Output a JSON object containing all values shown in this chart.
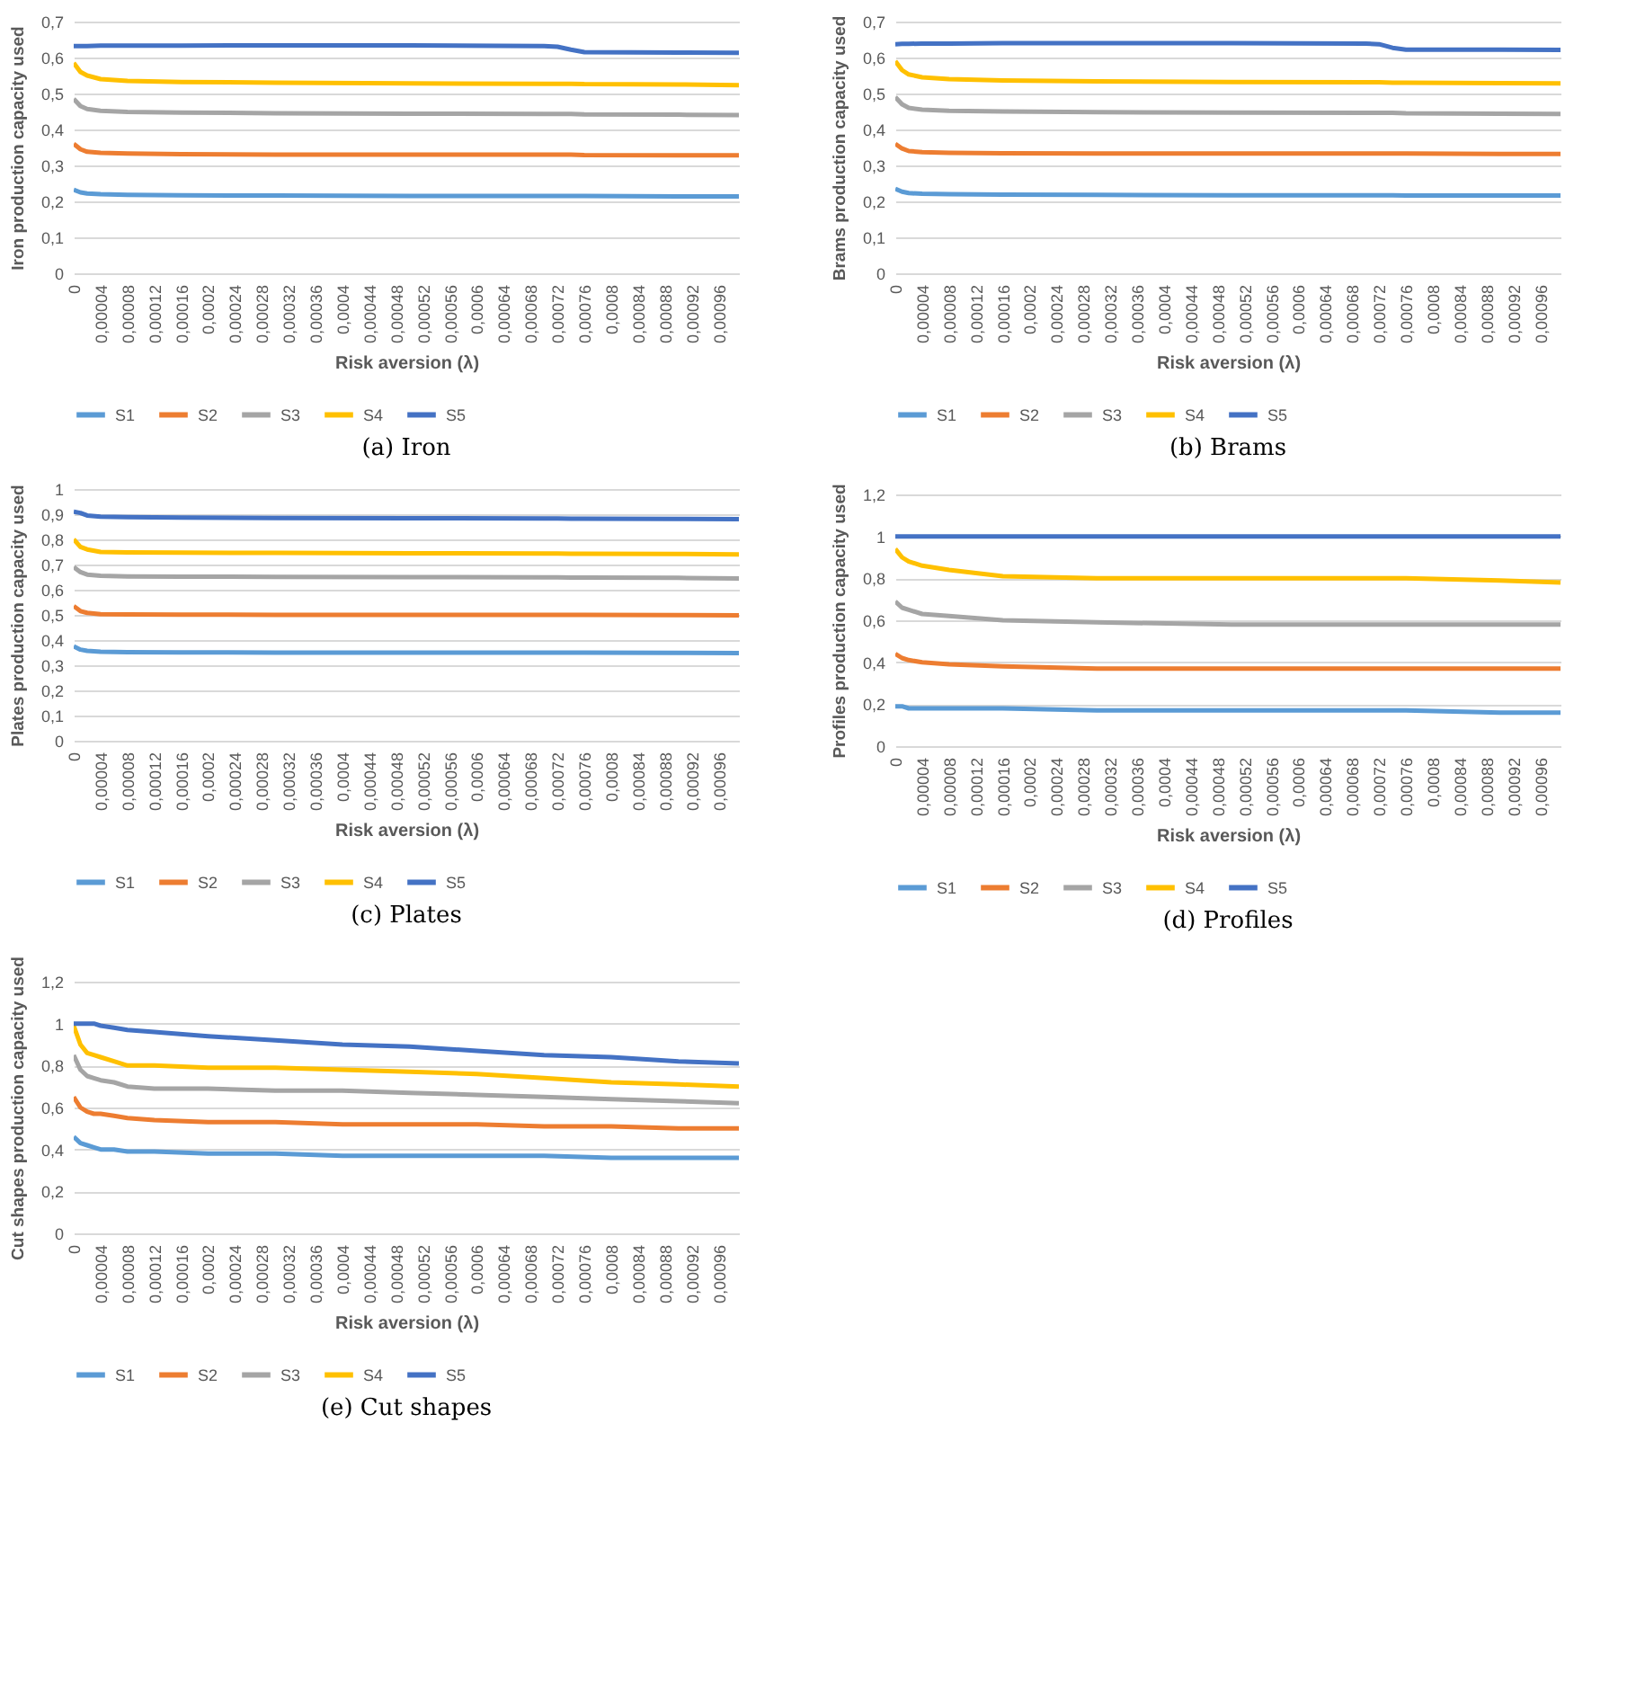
{
  "chart_data": [
    {
      "type": "line",
      "title": "(a) Iron",
      "xlabel": "Risk aversion (λ)",
      "ylabel": "Iron production capacity used",
      "legend": "bottom",
      "grid": "y",
      "xlim": [
        0,
        0.00099
      ],
      "ylim": [
        0,
        0.7
      ],
      "xticks": [
        {
          "value": 0,
          "label": "0"
        },
        {
          "value": 4e-05,
          "label": "0,00004"
        },
        {
          "value": 8e-05,
          "label": "0,00008"
        },
        {
          "value": 0.00012,
          "label": "0,00012"
        },
        {
          "value": 0.00016,
          "label": "0,00016"
        },
        {
          "value": 0.0002,
          "label": "0,0002"
        },
        {
          "value": 0.00024,
          "label": "0,00024"
        },
        {
          "value": 0.00028,
          "label": "0,00028"
        },
        {
          "value": 0.00032,
          "label": "0,00032"
        },
        {
          "value": 0.00036,
          "label": "0,00036"
        },
        {
          "value": 0.0004,
          "label": "0,0004"
        },
        {
          "value": 0.00044,
          "label": "0,00044"
        },
        {
          "value": 0.00048,
          "label": "0,00048"
        },
        {
          "value": 0.00052,
          "label": "0,00052"
        },
        {
          "value": 0.00056,
          "label": "0,00056"
        },
        {
          "value": 0.0006,
          "label": "0,0006"
        },
        {
          "value": 0.00064,
          "label": "0,00064"
        },
        {
          "value": 0.00068,
          "label": "0,00068"
        },
        {
          "value": 0.00072,
          "label": "0,00072"
        },
        {
          "value": 0.00076,
          "label": "0,00076"
        },
        {
          "value": 0.0008,
          "label": "0,0008"
        },
        {
          "value": 0.00084,
          "label": "0,00084"
        },
        {
          "value": 0.00088,
          "label": "0,00088"
        },
        {
          "value": 0.00092,
          "label": "0,00092"
        },
        {
          "value": 0.00096,
          "label": "0,00096"
        }
      ],
      "yticks": [
        {
          "value": 0,
          "label": "0"
        },
        {
          "value": 0.1,
          "label": "0,1"
        },
        {
          "value": 0.2,
          "label": "0,2"
        },
        {
          "value": 0.3,
          "label": "0,3"
        },
        {
          "value": 0.4,
          "label": "0,4"
        },
        {
          "value": 0.5,
          "label": "0,5"
        },
        {
          "value": 0.6,
          "label": "0,6"
        },
        {
          "value": 0.7,
          "label": "0,7"
        }
      ],
      "x": [
        0,
        1e-05,
        2e-05,
        4e-05,
        8e-05,
        0.00016,
        0.0003,
        0.0005,
        0.0007,
        0.00072,
        0.00074,
        0.00076,
        0.0009,
        0.00099
      ],
      "series": [
        {
          "name": "S1",
          "color": "#5b9bd5",
          "values": [
            0.232,
            0.225,
            0.222,
            0.22,
            0.218,
            0.217,
            0.216,
            0.215,
            0.215,
            0.215,
            0.215,
            0.215,
            0.214,
            0.214
          ]
        },
        {
          "name": "S2",
          "color": "#ed7d31",
          "values": [
            0.36,
            0.345,
            0.338,
            0.335,
            0.333,
            0.331,
            0.33,
            0.33,
            0.33,
            0.33,
            0.33,
            0.329,
            0.328,
            0.328
          ]
        },
        {
          "name": "S3",
          "color": "#a5a5a5",
          "values": [
            0.485,
            0.465,
            0.457,
            0.452,
            0.449,
            0.447,
            0.445,
            0.444,
            0.443,
            0.443,
            0.443,
            0.442,
            0.441,
            0.44
          ]
        },
        {
          "name": "S4",
          "color": "#ffc000",
          "values": [
            0.585,
            0.56,
            0.55,
            0.54,
            0.535,
            0.532,
            0.53,
            0.528,
            0.527,
            0.527,
            0.527,
            0.526,
            0.525,
            0.523
          ]
        },
        {
          "name": "S5",
          "color": "#4472c4",
          "values": [
            0.632,
            0.632,
            0.632,
            0.633,
            0.633,
            0.633,
            0.634,
            0.634,
            0.632,
            0.63,
            0.622,
            0.615,
            0.614,
            0.613
          ]
        }
      ]
    },
    {
      "type": "line",
      "title": "(b) Brams",
      "xlabel": "Risk aversion (λ)",
      "ylabel": "Brams production capacity used",
      "legend": "bottom",
      "grid": "y",
      "xlim": [
        0,
        0.00099
      ],
      "ylim": [
        0,
        0.7
      ],
      "xticks": [
        {
          "value": 0,
          "label": "0"
        },
        {
          "value": 4e-05,
          "label": "0,00004"
        },
        {
          "value": 8e-05,
          "label": "0,00008"
        },
        {
          "value": 0.00012,
          "label": "0,00012"
        },
        {
          "value": 0.00016,
          "label": "0,00016"
        },
        {
          "value": 0.0002,
          "label": "0,0002"
        },
        {
          "value": 0.00024,
          "label": "0,00024"
        },
        {
          "value": 0.00028,
          "label": "0,00028"
        },
        {
          "value": 0.00032,
          "label": "0,00032"
        },
        {
          "value": 0.00036,
          "label": "0,00036"
        },
        {
          "value": 0.0004,
          "label": "0,0004"
        },
        {
          "value": 0.00044,
          "label": "0,00044"
        },
        {
          "value": 0.00048,
          "label": "0,00048"
        },
        {
          "value": 0.00052,
          "label": "0,00052"
        },
        {
          "value": 0.00056,
          "label": "0,00056"
        },
        {
          "value": 0.0006,
          "label": "0,0006"
        },
        {
          "value": 0.00064,
          "label": "0,00064"
        },
        {
          "value": 0.00068,
          "label": "0,00068"
        },
        {
          "value": 0.00072,
          "label": "0,00072"
        },
        {
          "value": 0.00076,
          "label": "0,00076"
        },
        {
          "value": 0.0008,
          "label": "0,0008"
        },
        {
          "value": 0.00084,
          "label": "0,00084"
        },
        {
          "value": 0.00088,
          "label": "0,00088"
        },
        {
          "value": 0.00092,
          "label": "0,00092"
        },
        {
          "value": 0.00096,
          "label": "0,00096"
        }
      ],
      "yticks": [
        {
          "value": 0,
          "label": "0"
        },
        {
          "value": 0.1,
          "label": "0,1"
        },
        {
          "value": 0.2,
          "label": "0,2"
        },
        {
          "value": 0.3,
          "label": "0,3"
        },
        {
          "value": 0.4,
          "label": "0,4"
        },
        {
          "value": 0.5,
          "label": "0,5"
        },
        {
          "value": 0.6,
          "label": "0,6"
        },
        {
          "value": 0.7,
          "label": "0,7"
        }
      ],
      "x": [
        0,
        1e-05,
        2e-05,
        4e-05,
        8e-05,
        0.00016,
        0.0003,
        0.0005,
        0.0007,
        0.00072,
        0.00074,
        0.00076,
        0.0009,
        0.00099
      ],
      "series": [
        {
          "name": "S1",
          "color": "#5b9bd5",
          "values": [
            0.235,
            0.227,
            0.223,
            0.221,
            0.22,
            0.219,
            0.218,
            0.217,
            0.217,
            0.217,
            0.217,
            0.216,
            0.216,
            0.216
          ]
        },
        {
          "name": "S2",
          "color": "#ed7d31",
          "values": [
            0.36,
            0.347,
            0.34,
            0.337,
            0.335,
            0.334,
            0.333,
            0.333,
            0.333,
            0.333,
            0.333,
            0.333,
            0.332,
            0.332
          ]
        },
        {
          "name": "S3",
          "color": "#a5a5a5",
          "values": [
            0.49,
            0.47,
            0.46,
            0.455,
            0.452,
            0.45,
            0.448,
            0.447,
            0.446,
            0.446,
            0.446,
            0.445,
            0.444,
            0.443
          ]
        },
        {
          "name": "S4",
          "color": "#ffc000",
          "values": [
            0.59,
            0.565,
            0.553,
            0.545,
            0.54,
            0.536,
            0.534,
            0.532,
            0.531,
            0.531,
            0.53,
            0.53,
            0.529,
            0.528
          ]
        },
        {
          "name": "S5",
          "color": "#4472c4",
          "values": [
            0.637,
            0.638,
            0.638,
            0.639,
            0.639,
            0.64,
            0.64,
            0.64,
            0.639,
            0.637,
            0.627,
            0.622,
            0.622,
            0.621
          ]
        }
      ]
    },
    {
      "type": "line",
      "title": "(c) Plates",
      "xlabel": "Risk aversion (λ)",
      "ylabel": "Plates production capacity used",
      "legend": "bottom",
      "grid": "y",
      "xlim": [
        0,
        0.00099
      ],
      "ylim": [
        0,
        1
      ],
      "xticks": [
        {
          "value": 0,
          "label": "0"
        },
        {
          "value": 4e-05,
          "label": "0,00004"
        },
        {
          "value": 8e-05,
          "label": "0,00008"
        },
        {
          "value": 0.00012,
          "label": "0,00012"
        },
        {
          "value": 0.00016,
          "label": "0,00016"
        },
        {
          "value": 0.0002,
          "label": "0,0002"
        },
        {
          "value": 0.00024,
          "label": "0,00024"
        },
        {
          "value": 0.00028,
          "label": "0,00028"
        },
        {
          "value": 0.00032,
          "label": "0,00032"
        },
        {
          "value": 0.00036,
          "label": "0,00036"
        },
        {
          "value": 0.0004,
          "label": "0,0004"
        },
        {
          "value": 0.00044,
          "label": "0,00044"
        },
        {
          "value": 0.00048,
          "label": "0,00048"
        },
        {
          "value": 0.00052,
          "label": "0,00052"
        },
        {
          "value": 0.00056,
          "label": "0,00056"
        },
        {
          "value": 0.0006,
          "label": "0,0006"
        },
        {
          "value": 0.00064,
          "label": "0,00064"
        },
        {
          "value": 0.00068,
          "label": "0,00068"
        },
        {
          "value": 0.00072,
          "label": "0,00072"
        },
        {
          "value": 0.00076,
          "label": "0,00076"
        },
        {
          "value": 0.0008,
          "label": "0,0008"
        },
        {
          "value": 0.00084,
          "label": "0,00084"
        },
        {
          "value": 0.00088,
          "label": "0,00088"
        },
        {
          "value": 0.00092,
          "label": "0,00092"
        },
        {
          "value": 0.00096,
          "label": "0,00096"
        }
      ],
      "yticks": [
        {
          "value": 0,
          "label": "0"
        },
        {
          "value": 0.1,
          "label": "0,1"
        },
        {
          "value": 0.2,
          "label": "0,2"
        },
        {
          "value": 0.3,
          "label": "0,3"
        },
        {
          "value": 0.4,
          "label": "0,4"
        },
        {
          "value": 0.5,
          "label": "0,5"
        },
        {
          "value": 0.6,
          "label": "0,6"
        },
        {
          "value": 0.7,
          "label": "0,7"
        },
        {
          "value": 0.8,
          "label": "0,8"
        },
        {
          "value": 0.9,
          "label": "0,9"
        },
        {
          "value": 1,
          "label": "1"
        }
      ],
      "x": [
        0,
        1e-05,
        2e-05,
        4e-05,
        8e-05,
        0.00016,
        0.0003,
        0.0005,
        0.0007,
        0.00072,
        0.00074,
        0.00076,
        0.0009,
        0.00099
      ],
      "series": [
        {
          "name": "S1",
          "color": "#5b9bd5",
          "values": [
            0.375,
            0.362,
            0.357,
            0.354,
            0.352,
            0.351,
            0.35,
            0.35,
            0.35,
            0.35,
            0.35,
            0.35,
            0.349,
            0.348
          ]
        },
        {
          "name": "S2",
          "color": "#ed7d31",
          "values": [
            0.535,
            0.515,
            0.508,
            0.503,
            0.502,
            0.501,
            0.5,
            0.5,
            0.5,
            0.5,
            0.5,
            0.5,
            0.499,
            0.498
          ]
        },
        {
          "name": "S3",
          "color": "#a5a5a5",
          "values": [
            0.69,
            0.67,
            0.66,
            0.655,
            0.653,
            0.652,
            0.651,
            0.65,
            0.649,
            0.649,
            0.648,
            0.648,
            0.647,
            0.645
          ]
        },
        {
          "name": "S4",
          "color": "#ffc000",
          "values": [
            0.8,
            0.77,
            0.76,
            0.75,
            0.748,
            0.747,
            0.746,
            0.745,
            0.744,
            0.744,
            0.743,
            0.743,
            0.742,
            0.74
          ]
        },
        {
          "name": "S5",
          "color": "#4472c4",
          "values": [
            0.91,
            0.905,
            0.895,
            0.89,
            0.888,
            0.887,
            0.885,
            0.884,
            0.883,
            0.883,
            0.882,
            0.882,
            0.881,
            0.88
          ]
        }
      ]
    },
    {
      "type": "line",
      "title": "(d) Profiles",
      "xlabel": "Risk aversion (λ)",
      "ylabel": "Profiles production capacity used",
      "legend": "bottom",
      "grid": "y",
      "xlim": [
        0,
        0.00099
      ],
      "ylim": [
        0,
        1.2
      ],
      "xticks": [
        {
          "value": 0,
          "label": "0"
        },
        {
          "value": 4e-05,
          "label": "0,00004"
        },
        {
          "value": 8e-05,
          "label": "0,00008"
        },
        {
          "value": 0.00012,
          "label": "0,00012"
        },
        {
          "value": 0.00016,
          "label": "0,00016"
        },
        {
          "value": 0.0002,
          "label": "0,0002"
        },
        {
          "value": 0.00024,
          "label": "0,00024"
        },
        {
          "value": 0.00028,
          "label": "0,00028"
        },
        {
          "value": 0.00032,
          "label": "0,00032"
        },
        {
          "value": 0.00036,
          "label": "0,00036"
        },
        {
          "value": 0.0004,
          "label": "0,0004"
        },
        {
          "value": 0.00044,
          "label": "0,00044"
        },
        {
          "value": 0.00048,
          "label": "0,00048"
        },
        {
          "value": 0.00052,
          "label": "0,00052"
        },
        {
          "value": 0.00056,
          "label": "0,00056"
        },
        {
          "value": 0.0006,
          "label": "0,0006"
        },
        {
          "value": 0.00064,
          "label": "0,00064"
        },
        {
          "value": 0.00068,
          "label": "0,00068"
        },
        {
          "value": 0.00072,
          "label": "0,00072"
        },
        {
          "value": 0.00076,
          "label": "0,00076"
        },
        {
          "value": 0.0008,
          "label": "0,0008"
        },
        {
          "value": 0.00084,
          "label": "0,00084"
        },
        {
          "value": 0.00088,
          "label": "0,00088"
        },
        {
          "value": 0.00092,
          "label": "0,00092"
        },
        {
          "value": 0.00096,
          "label": "0,00096"
        }
      ],
      "yticks": [
        {
          "value": 0,
          "label": "0"
        },
        {
          "value": 0.2,
          "label": "0,2"
        },
        {
          "value": 0.4,
          "label": "0,4"
        },
        {
          "value": 0.6,
          "label": "0,6"
        },
        {
          "value": 0.8,
          "label": "0,8"
        },
        {
          "value": 1,
          "label": "1"
        },
        {
          "value": 1.2,
          "label": "1,2"
        }
      ],
      "x": [
        0,
        1e-05,
        2e-05,
        4e-05,
        8e-05,
        0.00016,
        0.0003,
        0.0005,
        0.0007,
        0.00072,
        0.00074,
        0.00076,
        0.0009,
        0.00099
      ],
      "series": [
        {
          "name": "S1",
          "color": "#5b9bd5",
          "values": [
            0.19,
            0.19,
            0.18,
            0.18,
            0.18,
            0.18,
            0.17,
            0.17,
            0.17,
            0.17,
            0.17,
            0.17,
            0.16,
            0.16
          ]
        },
        {
          "name": "S2",
          "color": "#ed7d31",
          "values": [
            0.44,
            0.42,
            0.41,
            0.4,
            0.39,
            0.38,
            0.37,
            0.37,
            0.37,
            0.37,
            0.37,
            0.37,
            0.37,
            0.37
          ]
        },
        {
          "name": "S3",
          "color": "#a5a5a5",
          "values": [
            0.69,
            0.66,
            0.65,
            0.63,
            0.62,
            0.6,
            0.59,
            0.58,
            0.58,
            0.58,
            0.58,
            0.58,
            0.58,
            0.58
          ]
        },
        {
          "name": "S4",
          "color": "#ffc000",
          "values": [
            0.94,
            0.9,
            0.88,
            0.86,
            0.84,
            0.81,
            0.8,
            0.8,
            0.8,
            0.8,
            0.8,
            0.8,
            0.79,
            0.78
          ]
        },
        {
          "name": "S5",
          "color": "#4472c4",
          "values": [
            1,
            1,
            1,
            1,
            1,
            1,
            1,
            1,
            1,
            1,
            1,
            1,
            1,
            1
          ]
        }
      ]
    },
    {
      "type": "line",
      "title": "(e) Cut shapes",
      "xlabel": "Risk aversion (λ)",
      "ylabel": "Cut shapes production capacity used",
      "legend": "bottom",
      "grid": "y",
      "xlim": [
        0,
        0.00099
      ],
      "ylim": [
        0,
        1.2
      ],
      "xticks": [
        {
          "value": 0,
          "label": "0"
        },
        {
          "value": 4e-05,
          "label": "0,00004"
        },
        {
          "value": 8e-05,
          "label": "0,00008"
        },
        {
          "value": 0.00012,
          "label": "0,00012"
        },
        {
          "value": 0.00016,
          "label": "0,00016"
        },
        {
          "value": 0.0002,
          "label": "0,0002"
        },
        {
          "value": 0.00024,
          "label": "0,00024"
        },
        {
          "value": 0.00028,
          "label": "0,00028"
        },
        {
          "value": 0.00032,
          "label": "0,00032"
        },
        {
          "value": 0.00036,
          "label": "0,00036"
        },
        {
          "value": 0.0004,
          "label": "0,0004"
        },
        {
          "value": 0.00044,
          "label": "0,00044"
        },
        {
          "value": 0.00048,
          "label": "0,00048"
        },
        {
          "value": 0.00052,
          "label": "0,00052"
        },
        {
          "value": 0.00056,
          "label": "0,00056"
        },
        {
          "value": 0.0006,
          "label": "0,0006"
        },
        {
          "value": 0.00064,
          "label": "0,00064"
        },
        {
          "value": 0.00068,
          "label": "0,00068"
        },
        {
          "value": 0.00072,
          "label": "0,00072"
        },
        {
          "value": 0.00076,
          "label": "0,00076"
        },
        {
          "value": 0.0008,
          "label": "0,0008"
        },
        {
          "value": 0.00084,
          "label": "0,00084"
        },
        {
          "value": 0.00088,
          "label": "0,00088"
        },
        {
          "value": 0.00092,
          "label": "0,00092"
        },
        {
          "value": 0.00096,
          "label": "0,00096"
        }
      ],
      "yticks": [
        {
          "value": 0,
          "label": "0"
        },
        {
          "value": 0.2,
          "label": "0,2"
        },
        {
          "value": 0.4,
          "label": "0,4"
        },
        {
          "value": 0.6,
          "label": "0,6"
        },
        {
          "value": 0.8,
          "label": "0,8"
        },
        {
          "value": 1,
          "label": "1"
        },
        {
          "value": 1.2,
          "label": "1,2"
        }
      ],
      "x": [
        0,
        1e-05,
        2e-05,
        3e-05,
        4e-05,
        6e-05,
        8e-05,
        0.00012,
        0.0002,
        0.0003,
        0.0004,
        0.0005,
        0.0006,
        0.0007,
        0.0008,
        0.0009,
        0.00099
      ],
      "series": [
        {
          "name": "S1",
          "color": "#5b9bd5",
          "values": [
            0.46,
            0.43,
            0.42,
            0.41,
            0.4,
            0.4,
            0.39,
            0.39,
            0.38,
            0.38,
            0.37,
            0.37,
            0.37,
            0.37,
            0.36,
            0.36,
            0.36
          ]
        },
        {
          "name": "S2",
          "color": "#ed7d31",
          "values": [
            0.65,
            0.6,
            0.58,
            0.57,
            0.57,
            0.56,
            0.55,
            0.54,
            0.53,
            0.53,
            0.52,
            0.52,
            0.52,
            0.51,
            0.51,
            0.5,
            0.5
          ]
        },
        {
          "name": "S3",
          "color": "#a5a5a5",
          "values": [
            0.85,
            0.78,
            0.75,
            0.74,
            0.73,
            0.72,
            0.7,
            0.69,
            0.69,
            0.68,
            0.68,
            0.67,
            0.66,
            0.65,
            0.64,
            0.63,
            0.62
          ]
        },
        {
          "name": "S4",
          "color": "#ffc000",
          "values": [
            0.99,
            0.9,
            0.86,
            0.85,
            0.84,
            0.82,
            0.8,
            0.8,
            0.79,
            0.79,
            0.78,
            0.77,
            0.76,
            0.74,
            0.72,
            0.71,
            0.7
          ]
        },
        {
          "name": "S5",
          "color": "#4472c4",
          "values": [
            1,
            1,
            1,
            1,
            0.99,
            0.98,
            0.97,
            0.96,
            0.94,
            0.92,
            0.9,
            0.89,
            0.87,
            0.85,
            0.84,
            0.82,
            0.81
          ]
        }
      ]
    }
  ]
}
